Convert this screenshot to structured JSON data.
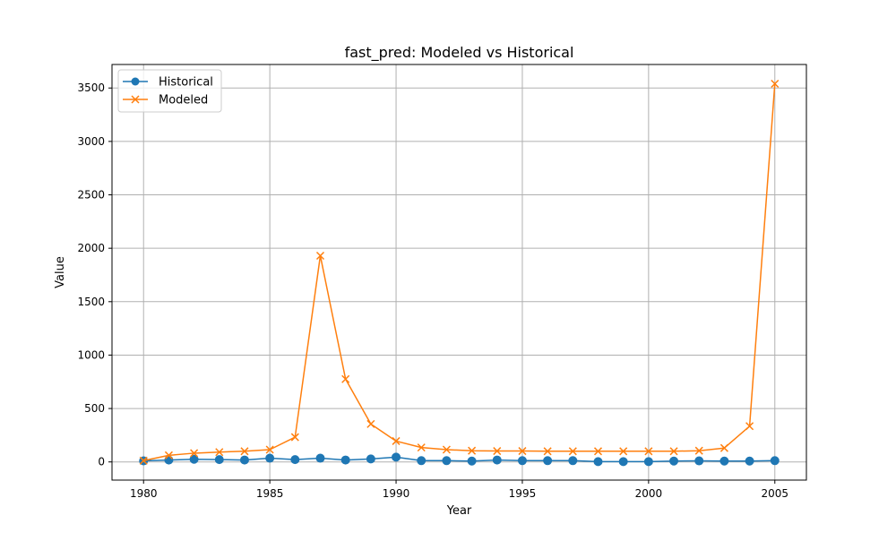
{
  "chart_data": {
    "type": "line",
    "title": "fast_pred: Modeled vs Historical",
    "xlabel": "Year",
    "ylabel": "Value",
    "xlim": [
      1978.75,
      2006.25
    ],
    "ylim": [
      -170,
      3720
    ],
    "xticks": [
      1980,
      1985,
      1990,
      1995,
      2000,
      2005
    ],
    "yticks": [
      0,
      500,
      1000,
      1500,
      2000,
      2500,
      3000,
      3500
    ],
    "grid": true,
    "legend_position": "top-left",
    "x": [
      1980,
      1981,
      1982,
      1983,
      1984,
      1985,
      1986,
      1987,
      1988,
      1989,
      1990,
      1991,
      1992,
      1993,
      1994,
      1995,
      1996,
      1997,
      1998,
      1999,
      2000,
      2001,
      2002,
      2003,
      2004,
      2005
    ],
    "series": [
      {
        "name": "Historical",
        "color": "#1f77b4",
        "marker": "circle",
        "values": [
          10,
          18,
          25,
          22,
          18,
          35,
          22,
          35,
          18,
          28,
          45,
          12,
          12,
          8,
          18,
          12,
          12,
          12,
          3,
          3,
          3,
          8,
          10,
          8,
          8,
          12
        ]
      },
      {
        "name": "Modeled",
        "color": "#ff7f0e",
        "marker": "x",
        "values": [
          12,
          62,
          82,
          92,
          100,
          115,
          232,
          1930,
          775,
          355,
          195,
          135,
          115,
          105,
          102,
          102,
          100,
          100,
          100,
          100,
          100,
          100,
          105,
          130,
          335,
          3540
        ]
      }
    ]
  }
}
